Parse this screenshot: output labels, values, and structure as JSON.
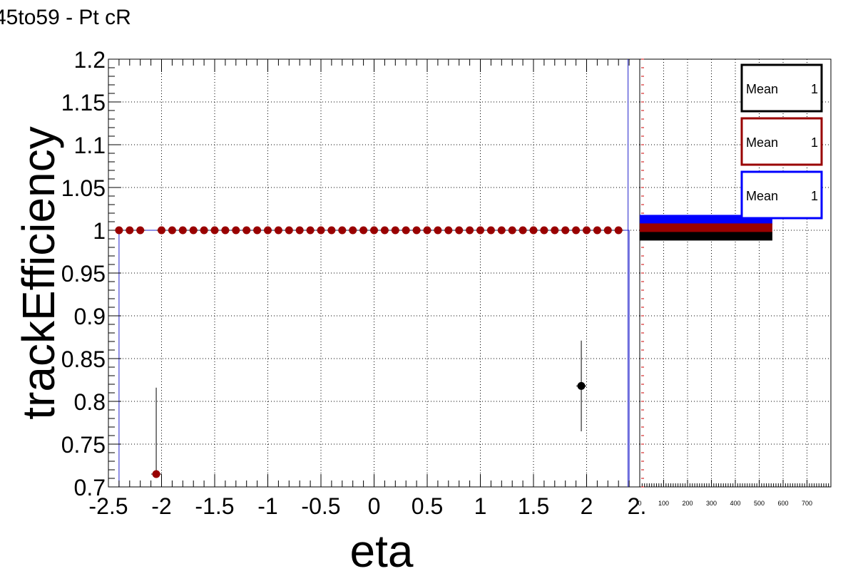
{
  "title": "45to59 - Pt cR",
  "chart_data": [
    {
      "type": "scatter",
      "xlabel": "eta",
      "ylabel": "trackEfficiency",
      "xlim": [
        -2.5,
        2.5
      ],
      "ylim": [
        0.7,
        1.2
      ],
      "grid": true,
      "x_ticks": [
        "-2.5",
        "-2",
        "-1.5",
        "-1",
        "-0.5",
        "0",
        "0.5",
        "1",
        "1.5",
        "2",
        "2."
      ],
      "y_ticks": [
        "0.7",
        "0.75",
        "0.8",
        "0.85",
        "0.9",
        "0.95",
        "1",
        "1.05",
        "1.1",
        "1.15",
        "1.2"
      ],
      "colors": {
        "black": "#000000",
        "red": "#990000",
        "blue": "#0000ff",
        "frame": "#2222cc"
      },
      "series": [
        {
          "color": "#990000",
          "x": [
            -2.4,
            -2.3,
            -2.2,
            -2.0,
            -1.9,
            -1.8,
            -1.7,
            -1.6,
            -1.5,
            -1.4,
            -1.3,
            -1.2,
            -1.1,
            -1.0,
            -0.9,
            -0.8,
            -0.7,
            -0.6,
            -0.5,
            -0.4,
            -0.3,
            -0.2,
            -0.1,
            0.0,
            0.1,
            0.2,
            0.3,
            0.4,
            0.5,
            0.6,
            0.7,
            0.8,
            0.9,
            1.0,
            1.1,
            1.2,
            1.3,
            1.4,
            1.5,
            1.6,
            1.7,
            1.8,
            1.9,
            2.0,
            2.1,
            2.2,
            2.3
          ],
          "y": [
            1,
            1,
            1,
            1,
            1,
            1,
            1,
            1,
            1,
            1,
            1,
            1,
            1,
            1,
            1,
            1,
            1,
            1,
            1,
            1,
            1,
            1,
            1,
            1,
            1,
            1,
            1,
            1,
            1,
            1,
            1,
            1,
            1,
            1,
            1,
            1,
            1,
            1,
            1,
            1,
            1,
            1,
            1,
            1,
            1,
            1,
            1
          ]
        },
        {
          "color": "#990000",
          "x": [
            -2.05
          ],
          "y": [
            0.715
          ],
          "yerr_high": [
            0.816
          ]
        },
        {
          "color": "#000000",
          "x": [
            1.95
          ],
          "y": [
            0.818
          ],
          "yerr_low": [
            0.765
          ],
          "yerr_high": [
            0.871
          ]
        }
      ]
    },
    {
      "type": "bar",
      "orientation": "horizontal",
      "xlim": [
        0,
        800
      ],
      "x_ticks": [
        "0",
        "100",
        "200",
        "300",
        "400",
        "500",
        "600",
        "700"
      ],
      "series": [
        {
          "color": "#0000ff",
          "value": 555,
          "y_range": [
            1.006,
            1.018
          ]
        },
        {
          "color": "#990000",
          "value": 555,
          "y_range": [
            0.997,
            1.008
          ]
        },
        {
          "color": "#000000",
          "value": 555,
          "y_range": [
            0.988,
            0.998
          ]
        }
      ]
    }
  ],
  "stats_boxes": [
    {
      "label": "Mean",
      "value": "1",
      "color": "#000000"
    },
    {
      "label": "Mean",
      "value": "1",
      "color": "#990000"
    },
    {
      "label": "Mean",
      "value": "1",
      "color": "#0000ff"
    }
  ]
}
